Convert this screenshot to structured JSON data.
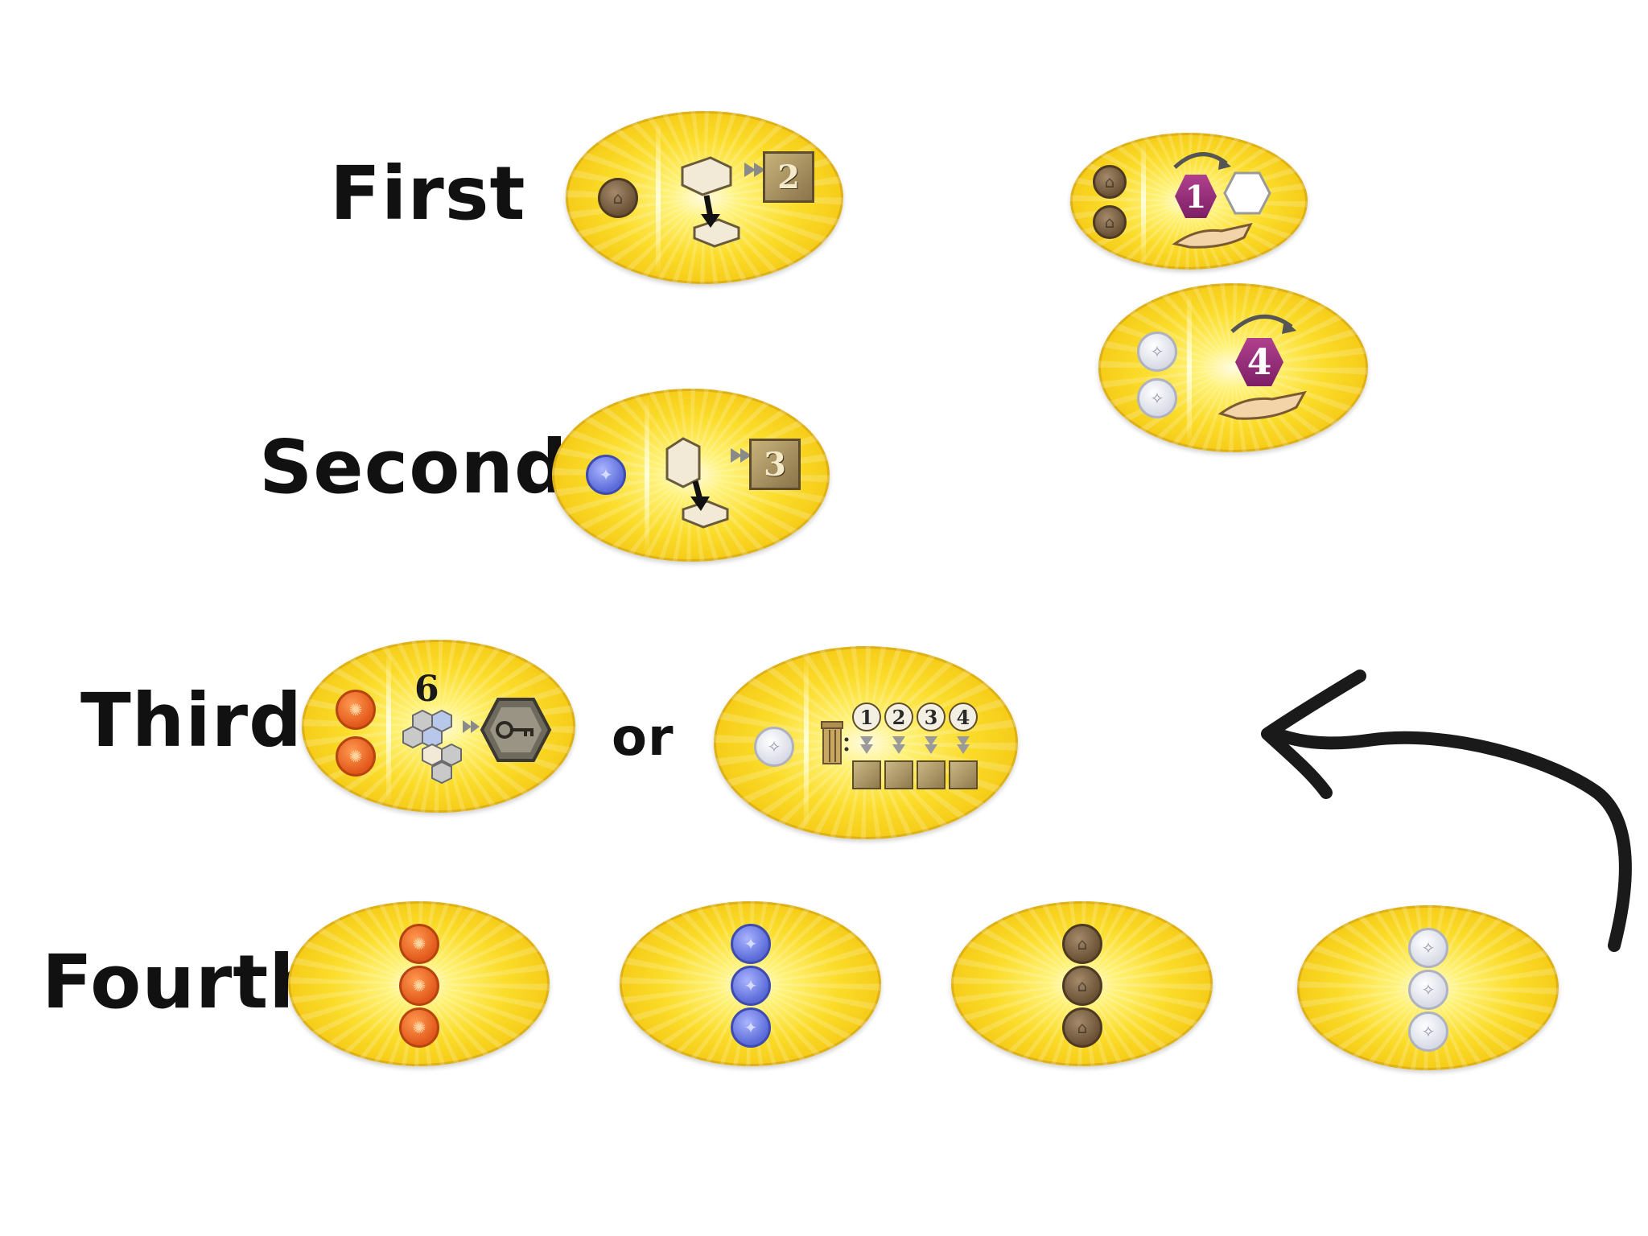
{
  "labels": {
    "first": "First",
    "second": "Second",
    "third": "Third",
    "fourth": "Fourth",
    "or": "or"
  },
  "tiles": {
    "first_main": {
      "cost_coins": [
        "brown"
      ],
      "reward_value": "2",
      "icons": [
        "building-piece-icon",
        "place-arrow-icon",
        "laurel-plaque-icon"
      ]
    },
    "first_extra_top": {
      "cost_coins": [
        "brown",
        "brown"
      ],
      "badge_value": "1",
      "icons": [
        "rotate-arrow-icon",
        "hexagon-piece-icon",
        "hand-icon"
      ]
    },
    "first_extra_bottom": {
      "cost_coins": [
        "white",
        "white"
      ],
      "badge_value": "4",
      "icons": [
        "rotate-arrow-icon",
        "hand-icon"
      ]
    },
    "second_main": {
      "cost_coins": [
        "blue"
      ],
      "reward_value": "3",
      "icons": [
        "building-piece-icon",
        "place-arrow-icon",
        "laurel-plaque-icon"
      ]
    },
    "third_a": {
      "cost_coins": [
        "orange",
        "orange"
      ],
      "count_value": "6",
      "icons": [
        "hex-cluster-icon",
        "key-hexagon-icon"
      ]
    },
    "third_b": {
      "cost_coins": [
        "white"
      ],
      "numbers": [
        "1",
        "2",
        "3",
        "4"
      ],
      "icons": [
        "column-piece-icon",
        "arrow-down-icon",
        "small-plaque-icon"
      ]
    },
    "fourth": [
      {
        "coin_color": "orange",
        "count": 3
      },
      {
        "coin_color": "blue",
        "count": 3
      },
      {
        "coin_color": "brown",
        "count": 3
      },
      {
        "coin_color": "white",
        "count": 3
      }
    ]
  },
  "colors": {
    "tile_yellow": "#fbdc2a",
    "coin_orange": "#e2581a",
    "coin_blue": "#5a6ad8",
    "coin_brown": "#6b5236",
    "coin_white": "#d8dbe6",
    "badge_purple": "#7d1f66",
    "arrow_ink": "#1a1a1a"
  },
  "icons": [
    "curved-arrow-icon"
  ]
}
